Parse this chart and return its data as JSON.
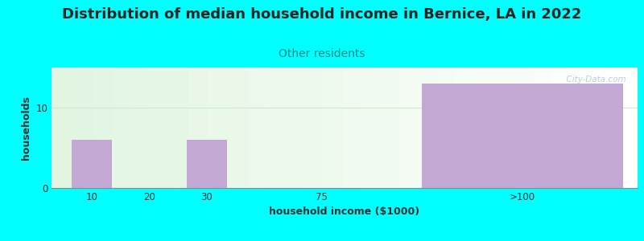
{
  "title": "Distribution of median household income in Bernice, LA in 2022",
  "subtitle": "Other residents",
  "xlabel": "household income ($1000)",
  "ylabel": "households",
  "categories": [
    "10",
    "20",
    "30",
    "75",
    ">100"
  ],
  "values": [
    6,
    0,
    6,
    0,
    13
  ],
  "bar_color": "#c4a8d4",
  "ylim": [
    0,
    15
  ],
  "yticks": [
    0,
    10
  ],
  "background_color": "#00ffff",
  "title_fontsize": 13,
  "subtitle_fontsize": 10,
  "subtitle_color": "#008888",
  "axis_label_fontsize": 9,
  "tick_fontsize": 8.5,
  "watermark": "  City-Data.com",
  "watermark_color": "#b0c8d8",
  "grid_color": "#d0e8d0"
}
